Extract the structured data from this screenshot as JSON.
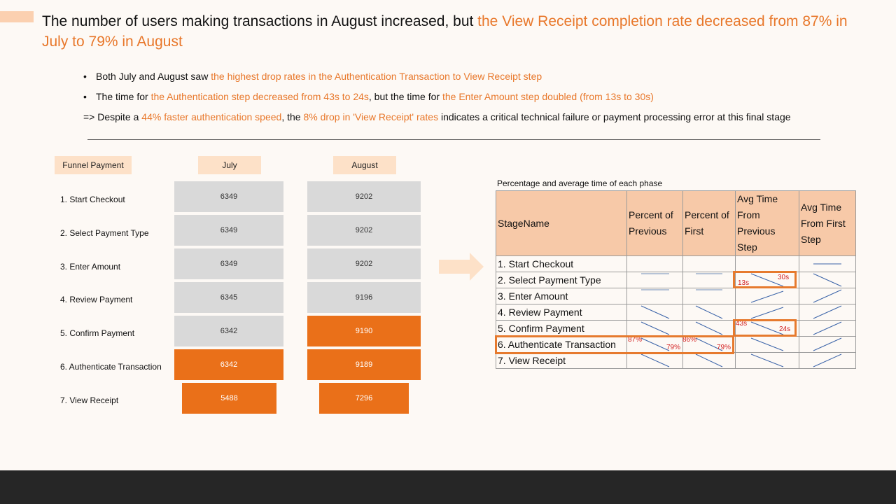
{
  "title": {
    "part1": "The number of users making transactions in August increased, but ",
    "part2": "the View Receipt completion rate decreased from 87% in July to 79% in August"
  },
  "bullets": [
    {
      "pre": "Both July and August saw ",
      "hl": "the highest drop rates in the Authentication Transaction to View Receipt step",
      "post": ""
    },
    {
      "pre": "The time for ",
      "hl": "the Authentication step decreased from 43s to 24s",
      "mid": ", but the time for ",
      "hl2": "the Enter Amount step doubled (from 13s to 30s)"
    }
  ],
  "conclusion": {
    "p1": "=> Despite a ",
    "h1": "44% faster authentication speed",
    "p2": ", the ",
    "h2": "8% drop in 'View Receipt' rates",
    "p3": " indicates a critical technical failure or payment processing error at this final stage"
  },
  "funnel": {
    "header": "Funnel Payment",
    "col_july": "July",
    "col_august": "August",
    "stages": [
      {
        "label": "1. Start Checkout",
        "july": "6349",
        "august": "9202"
      },
      {
        "label": "2. Select Payment Type",
        "july": "6349",
        "august": "9202"
      },
      {
        "label": "3. Enter Amount",
        "july": "6349",
        "august": "9202"
      },
      {
        "label": "4. Review Payment",
        "july": "6345",
        "august": "9196"
      },
      {
        "label": "5. Confirm Payment",
        "july": "6342",
        "august": "9190"
      },
      {
        "label": "6. Authenticate Transaction",
        "july": "6342",
        "august": "9189"
      },
      {
        "label": "7. View Receipt",
        "july": "5488",
        "august": "7296"
      }
    ],
    "highlight_color": "#ea7019",
    "neutral_color": "#d9d9d9"
  },
  "table": {
    "title": "Percentage and average time of each phase",
    "headers": [
      "StageName",
      "Percent of Previous",
      "Percent of First",
      "Avg Time From Previous Step",
      "Avg Time From First Step"
    ],
    "rows": [
      "1. Start Checkout",
      "2. Select Payment Type",
      "3. Enter Amount",
      "4. Review Payment",
      "5. Confirm Payment",
      "6. Authenticate Transaction",
      "7. View Receipt"
    ],
    "notes": {
      "enter_amount_jul": "13s",
      "enter_amount_aug": "30s",
      "auth_jul": "43s",
      "auth_aug": "24s",
      "vr_prev_jul": "87%",
      "vr_prev_aug": "79%",
      "vr_first_jul": "86%",
      "vr_first_aug": "79%"
    }
  }
}
